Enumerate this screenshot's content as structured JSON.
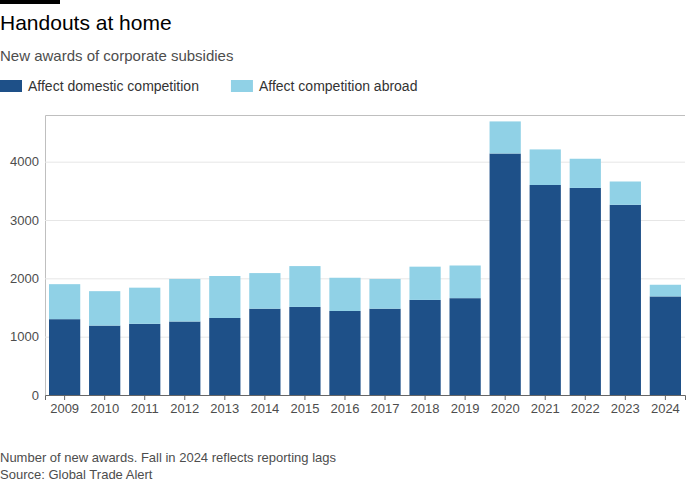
{
  "chart_data": {
    "type": "bar",
    "stacked": true,
    "grid": true,
    "legend": "top-left",
    "title": "Handouts at home",
    "subtitle": "New awards of corporate subsidies",
    "footnote": "Number of new awards. Fall in 2024 reflects reporting lags",
    "source": "Source: Global Trade Alert",
    "categories": [
      "2009",
      "2010",
      "2011",
      "2012",
      "2013",
      "2014",
      "2015",
      "2016",
      "2017",
      "2018",
      "2019",
      "2020",
      "2021",
      "2022",
      "2023",
      "2024"
    ],
    "series": [
      {
        "name": "Affect domestic competition",
        "color": "#1e5088",
        "values": [
          1300,
          1190,
          1220,
          1260,
          1320,
          1480,
          1510,
          1440,
          1480,
          1630,
          1660,
          4140,
          3600,
          3550,
          3260,
          1690
        ]
      },
      {
        "name": "Affect competition abroad",
        "color": "#90d1e6",
        "values": [
          600,
          590,
          620,
          730,
          720,
          610,
          700,
          570,
          510,
          570,
          560,
          550,
          610,
          500,
          400,
          200
        ]
      }
    ],
    "ylim": [
      0,
      4800
    ],
    "yticks": [
      0,
      1000,
      2000,
      3000,
      4000
    ]
  }
}
